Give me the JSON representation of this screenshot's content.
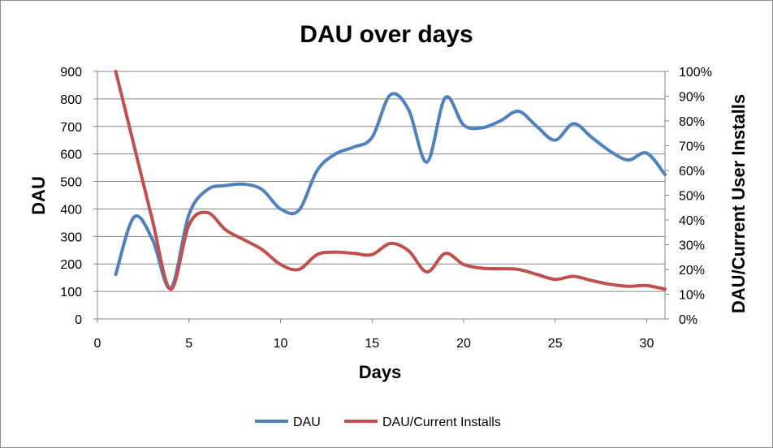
{
  "chart_data": {
    "type": "line",
    "title": "DAU over days",
    "xlabel": "Days",
    "ylabel": "DAU",
    "y2label": "DAU/Current User Installs",
    "xlim": [
      0,
      31
    ],
    "ylim": [
      0,
      900
    ],
    "y2lim": [
      0,
      1
    ],
    "x_ticks": [
      "0",
      "5",
      "10",
      "15",
      "20",
      "25",
      "30"
    ],
    "y_ticks": [
      "0",
      "100",
      "200",
      "300",
      "400",
      "500",
      "600",
      "700",
      "800",
      "900"
    ],
    "y2_ticks": [
      "0%",
      "10%",
      "20%",
      "30%",
      "40%",
      "50%",
      "60%",
      "70%",
      "80%",
      "90%",
      "100%"
    ],
    "grid": true,
    "legend_position": "bottom",
    "x": [
      1,
      2,
      3,
      4,
      5,
      6,
      7,
      8,
      9,
      10,
      11,
      12,
      13,
      14,
      15,
      16,
      17,
      18,
      19,
      20,
      21,
      22,
      23,
      24,
      25,
      26,
      27,
      28,
      29,
      30,
      31
    ],
    "series": [
      {
        "name": "DAU",
        "axis": "left",
        "color": "#4F81BD",
        "values": [
          162,
          370,
          290,
          112,
          380,
          470,
          485,
          490,
          470,
          400,
          395,
          540,
          600,
          625,
          660,
          815,
          760,
          570,
          805,
          705,
          695,
          720,
          755,
          700,
          650,
          710,
          660,
          610,
          578,
          603,
          525
        ]
      },
      {
        "name": "DAU/Current Installs",
        "axis": "right",
        "color": "#C0504D",
        "values": [
          1.0,
          0.7,
          0.4,
          0.12,
          0.38,
          0.43,
          0.36,
          0.32,
          0.28,
          0.22,
          0.2,
          0.26,
          0.27,
          0.265,
          0.26,
          0.305,
          0.275,
          0.19,
          0.265,
          0.22,
          0.205,
          0.203,
          0.2,
          0.18,
          0.16,
          0.172,
          0.155,
          0.14,
          0.132,
          0.135,
          0.12
        ]
      }
    ]
  }
}
